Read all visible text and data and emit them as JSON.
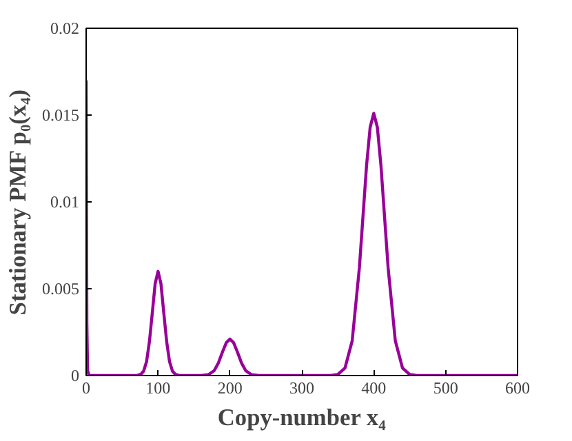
{
  "chart_data": {
    "type": "line",
    "xlabel": "Copy-number x₄",
    "ylabel": "Stationary PMF p₀(x₄)",
    "xlim": [
      0,
      600
    ],
    "xticks": [
      0,
      100,
      200,
      300,
      400,
      500,
      600
    ],
    "ylim": [
      0,
      0.02
    ],
    "yticks": [
      0,
      0.005,
      0.01,
      0.015,
      0.02
    ],
    "grid": false,
    "series": [
      {
        "color": "#990099",
        "x": [
          0,
          1,
          2,
          4,
          60,
          70,
          76,
          80,
          84,
          88,
          92,
          96,
          100,
          104,
          108,
          112,
          116,
          120,
          124,
          130,
          160,
          170,
          178,
          184,
          190,
          195,
          200,
          205,
          210,
          216,
          222,
          230,
          240,
          340,
          350,
          360,
          370,
          380,
          390,
          395,
          400,
          405,
          410,
          420,
          430,
          440,
          450,
          460,
          600
        ],
        "values": [
          0.017,
          0.003,
          0.0003,
          0,
          0,
          0,
          7e-05,
          0.00026,
          0.0008,
          0.00195,
          0.0036,
          0.0053,
          0.006,
          0.0053,
          0.0036,
          0.00195,
          0.0008,
          0.00026,
          7e-05,
          0,
          0,
          5e-05,
          0.00028,
          0.00073,
          0.0014,
          0.0019,
          0.0021,
          0.0019,
          0.0014,
          0.00073,
          0.00028,
          5e-05,
          0,
          0,
          6e-05,
          0.00043,
          0.002,
          0.0062,
          0.0121,
          0.0143,
          0.0151,
          0.0143,
          0.0121,
          0.0062,
          0.002,
          0.00043,
          6e-05,
          0,
          0
        ]
      }
    ]
  }
}
